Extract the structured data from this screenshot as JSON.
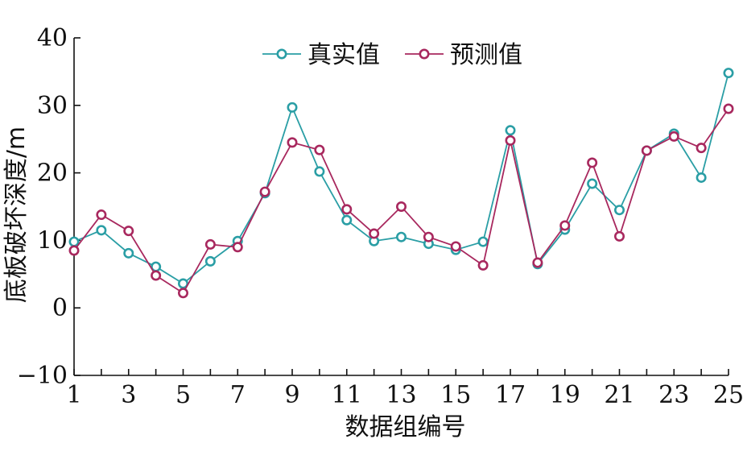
{
  "chart_data": {
    "type": "line",
    "xlabel": "数据组编号",
    "ylabel": "底板破坏深度/m",
    "xlim": [
      1,
      25
    ],
    "ylim": [
      -10,
      40
    ],
    "x_ticks": [
      1,
      3,
      5,
      7,
      9,
      11,
      13,
      15,
      17,
      19,
      21,
      23,
      25
    ],
    "y_ticks": [
      -10,
      0,
      10,
      20,
      30,
      40
    ],
    "grid": false,
    "legend_position": "top-center",
    "x": [
      1,
      2,
      3,
      4,
      5,
      6,
      7,
      8,
      9,
      10,
      11,
      12,
      13,
      14,
      15,
      16,
      17,
      18,
      19,
      20,
      21,
      22,
      23,
      24,
      25
    ],
    "series": [
      {
        "name": "真实值",
        "color": "#2a9ea5",
        "values": [
          9.8,
          11.5,
          8.1,
          6.1,
          3.6,
          6.9,
          9.9,
          17.0,
          29.7,
          20.2,
          13.0,
          9.9,
          10.5,
          9.5,
          8.6,
          9.8,
          26.3,
          6.5,
          11.6,
          18.4,
          14.5,
          23.3,
          25.8,
          19.3,
          34.8
        ]
      },
      {
        "name": "预测值",
        "color": "#a8285e",
        "values": [
          8.5,
          13.8,
          11.4,
          4.8,
          2.2,
          9.4,
          9.0,
          17.2,
          24.5,
          23.4,
          14.6,
          11.0,
          15.0,
          10.5,
          9.1,
          6.3,
          24.8,
          6.7,
          12.2,
          21.5,
          10.6,
          23.3,
          25.4,
          23.7,
          29.5
        ]
      }
    ]
  }
}
